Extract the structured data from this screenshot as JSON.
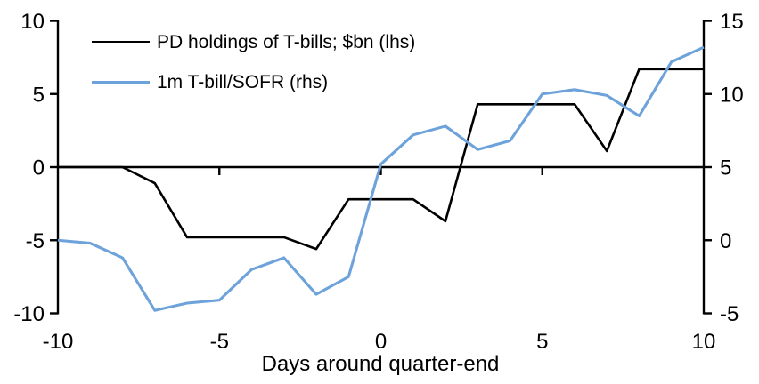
{
  "chart_data": {
    "type": "line",
    "title": "",
    "xlabel": "Days around quarter-end",
    "x": [
      -10,
      -9,
      -8,
      -7,
      -6,
      -5,
      -4,
      -3,
      -2,
      -1,
      0,
      1,
      2,
      3,
      4,
      5,
      6,
      7,
      8,
      9,
      10
    ],
    "series": [
      {
        "name": "PD holdings of T-bills; $bn (lhs)",
        "axis": "left",
        "color": "#000000",
        "values": [
          0,
          0,
          0,
          -1.1,
          -4.8,
          -4.8,
          -4.8,
          -4.8,
          -5.6,
          -2.2,
          -2.2,
          -2.2,
          -3.7,
          4.3,
          4.3,
          4.3,
          4.3,
          1.1,
          6.7,
          6.7,
          6.7
        ]
      },
      {
        "name": "1m T-bill/SOFR (rhs)",
        "axis": "right",
        "color": "#6DA2DA",
        "values": [
          0,
          -0.2,
          -1.2,
          -4.8,
          -4.3,
          -4.1,
          -2,
          -1.2,
          -3.7,
          -2.5,
          5.2,
          7.2,
          7.8,
          6.2,
          6.8,
          10,
          10.3,
          9.9,
          8.5,
          12.2,
          13.2
        ]
      }
    ],
    "left_axis": {
      "range": [
        -10,
        10
      ],
      "ticks": [
        10,
        5,
        0,
        -5,
        -10
      ]
    },
    "right_axis": {
      "range": [
        -5,
        15
      ],
      "ticks": [
        15,
        10,
        5,
        0,
        -5
      ]
    },
    "x_axis": {
      "range": [
        -10,
        10
      ],
      "labeled_ticks": [
        -10,
        -5,
        0,
        5,
        10
      ],
      "zero_line_ticks": [
        -5,
        0,
        5
      ]
    },
    "legend_position": "top-left",
    "grid": false
  },
  "colors": {
    "axis": "#000000",
    "background": "#ffffff"
  }
}
